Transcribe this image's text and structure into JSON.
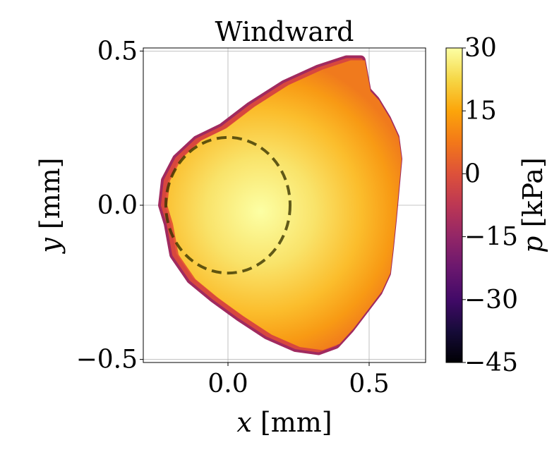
{
  "chart_data": {
    "type": "scatter",
    "title": "Windward",
    "xlabel_var": "x",
    "xlabel_unit": " [mm]",
    "ylabel_var": "y",
    "ylabel_unit": " [mm]",
    "xlim": [
      -0.3,
      0.7
    ],
    "ylim": [
      -0.51,
      0.51
    ],
    "xticks": [
      0.0,
      0.5
    ],
    "xtick_labels": [
      "0.0",
      "0.5"
    ],
    "yticks": [
      -0.5,
      0.0,
      0.5
    ],
    "ytick_labels": [
      "−0.5",
      "0.0",
      "0.5"
    ],
    "grid": true,
    "colormap": "inferno",
    "colorbar": {
      "label_var": "p",
      "label_unit": " [kPa]",
      "min": -45,
      "max": 30,
      "ticks": [
        30,
        15,
        0,
        -15,
        -30,
        -45
      ],
      "tick_labels": [
        "30",
        "15",
        "0",
        "−15",
        "−30",
        "−45"
      ]
    },
    "circle": {
      "center": [
        0.0,
        0.0
      ],
      "radius": 0.22,
      "style": "dashed",
      "color": "#3a3500"
    },
    "outline": [
      [
        -0.21,
        -0.06
      ],
      [
        -0.23,
        0.0
      ],
      [
        -0.22,
        0.08
      ],
      [
        -0.18,
        0.15
      ],
      [
        -0.11,
        0.21
      ],
      [
        -0.02,
        0.25
      ],
      [
        0.08,
        0.32
      ],
      [
        0.2,
        0.39
      ],
      [
        0.32,
        0.44
      ],
      [
        0.42,
        0.47
      ],
      [
        0.47,
        0.47
      ],
      [
        0.48,
        0.42
      ],
      [
        0.49,
        0.37
      ],
      [
        0.52,
        0.34
      ],
      [
        0.56,
        0.28
      ],
      [
        0.59,
        0.22
      ],
      [
        0.6,
        0.15
      ],
      [
        0.59,
        0.05
      ],
      [
        0.58,
        -0.05
      ],
      [
        0.57,
        -0.14
      ],
      [
        0.56,
        -0.22
      ],
      [
        0.53,
        -0.28
      ],
      [
        0.48,
        -0.34
      ],
      [
        0.43,
        -0.4
      ],
      [
        0.38,
        -0.45
      ],
      [
        0.32,
        -0.47
      ],
      [
        0.24,
        -0.46
      ],
      [
        0.14,
        -0.42
      ],
      [
        0.04,
        -0.36
      ],
      [
        -0.05,
        -0.3
      ],
      [
        -0.13,
        -0.24
      ],
      [
        -0.19,
        -0.16
      ],
      [
        -0.21,
        -0.06
      ]
    ],
    "pressure_field": {
      "center": [
        0.1,
        -0.02
      ],
      "center_value": 30,
      "edge_value": 5,
      "rim_value": -18
    }
  }
}
